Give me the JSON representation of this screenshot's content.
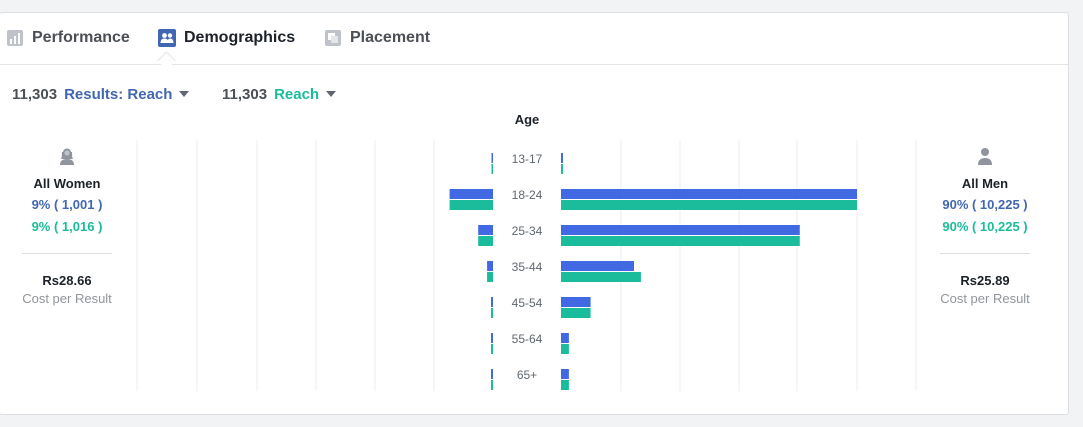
{
  "tabs": [
    {
      "label": "Performance",
      "icon": "bar-chart-icon",
      "active": false
    },
    {
      "label": "Demographics",
      "icon": "people-icon",
      "active": true
    },
    {
      "label": "Placement",
      "icon": "placement-icon",
      "active": false
    }
  ],
  "summary": {
    "metric1_value": "11,303",
    "metric1_label": "Results: Reach",
    "metric2_value": "11,303",
    "metric2_label": "Reach"
  },
  "colors": {
    "blue": "#4267b2",
    "teal": "#1bbc9b",
    "primary_series": "#4169e1",
    "secondary_series": "#1abc9c"
  },
  "women": {
    "label": "All Women",
    "pct_primary": "9% ( 1,001 )",
    "pct_secondary": "9% ( 1,016 )",
    "cost": "Rs28.66",
    "cost_label": "Cost per Result",
    "icon": "woman-avatar-icon"
  },
  "men": {
    "label": "All Men",
    "pct_primary": "90% ( 10,225 )",
    "pct_secondary": "90% ( 10,225 )",
    "cost": "Rs25.89",
    "cost_label": "Cost per Result",
    "icon": "man-avatar-icon"
  },
  "chart_data": {
    "type": "bar",
    "title": "Age",
    "categories": [
      "13-17",
      "18-24",
      "25-34",
      "35-44",
      "45-54",
      "55-64",
      "65+"
    ],
    "series": [
      {
        "name": "Results: Reach",
        "side": "women",
        "values": [
          0.4,
          44,
          15,
          6,
          2,
          2,
          2
        ]
      },
      {
        "name": "Reach",
        "side": "women",
        "values": [
          0.4,
          44,
          15,
          6,
          2,
          2,
          2
        ]
      },
      {
        "name": "Results: Reach",
        "side": "men",
        "values": [
          2,
          300,
          242,
          74,
          30,
          8,
          8
        ]
      },
      {
        "name": "Reach",
        "side": "men",
        "values": [
          2,
          300,
          242,
          81,
          30,
          8,
          8
        ]
      }
    ],
    "scale_max": 300,
    "grid": true
  }
}
